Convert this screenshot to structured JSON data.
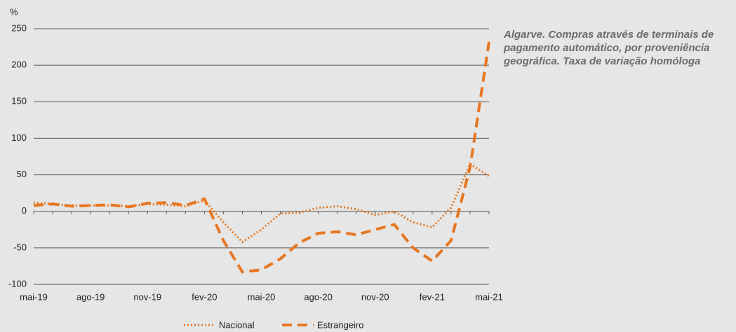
{
  "chart_data": {
    "type": "line",
    "title": "Algarve. Compras através de terminais de pagamento automático, por proveniência geográfica. Taxa de variação homóloga",
    "ylabel": "%",
    "categories": [
      "mai-19",
      null,
      null,
      "ago-19",
      null,
      null,
      "nov-19",
      null,
      null,
      "fev-20",
      null,
      null,
      "mai-20",
      null,
      null,
      "ago-20",
      null,
      null,
      "nov-20",
      null,
      null,
      "fev-21",
      null,
      null,
      "mai-21"
    ],
    "series": [
      {
        "name": "Nacional",
        "color": "#e87722",
        "style": "dotted",
        "values": [
          12,
          10,
          8,
          8,
          8,
          7,
          10,
          9,
          7,
          15,
          -15,
          -42,
          -25,
          -3,
          -2,
          5,
          7,
          3,
          -5,
          0,
          -15,
          -22,
          5,
          65,
          48
        ]
      },
      {
        "name": "Estrangeiro",
        "color": "#e87722",
        "style": "dashed",
        "values": [
          8,
          10,
          7,
          8,
          9,
          6,
          11,
          12,
          8,
          17,
          -40,
          -83,
          -80,
          -65,
          -43,
          -30,
          -28,
          -32,
          -25,
          -18,
          -50,
          -68,
          -40,
          60,
          232
        ]
      }
    ],
    "ylim": [
      -100,
      250
    ],
    "yticks": [
      -100,
      -50,
      0,
      50,
      100,
      150,
      200,
      250
    ],
    "grid": true,
    "legend": "bottom"
  }
}
